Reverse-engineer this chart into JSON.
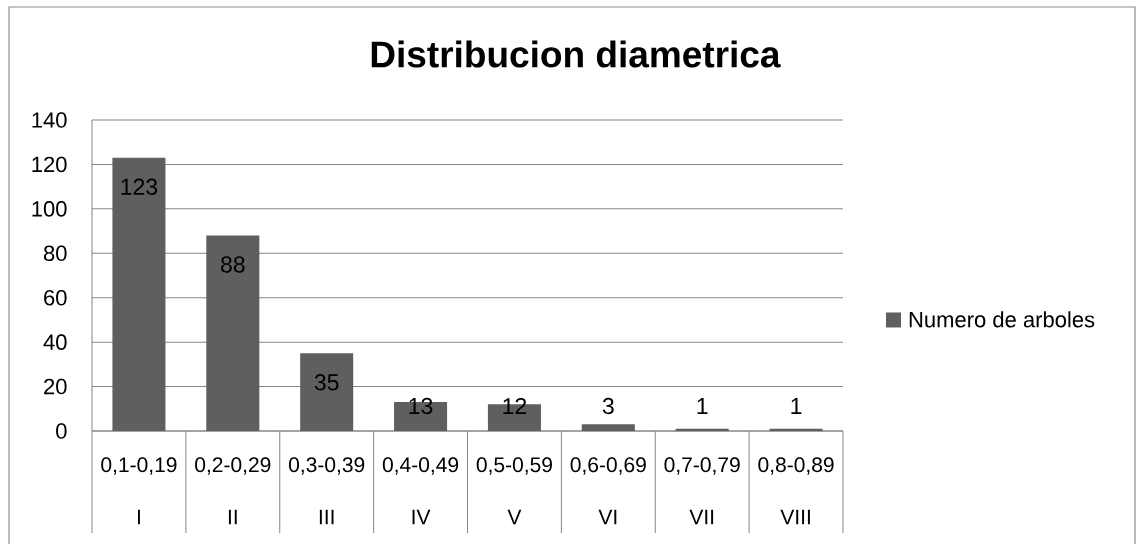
{
  "chart_data": {
    "type": "bar",
    "title": "Distribucion diametrica",
    "categories": [
      "0,1-0,19",
      "0,2-0,29",
      "0,3-0,39",
      "0,4-0,49",
      "0,5-0,59",
      "0,6-0,69",
      "0,7-0,79",
      "0,8-0,89"
    ],
    "series": [
      {
        "name": "Numero de arboles",
        "color": "#5f5f5f",
        "values": [
          123,
          88,
          35,
          13,
          12,
          3,
          1,
          1
        ]
      }
    ],
    "ylim": [
      0,
      140
    ],
    "yticks": [
      0,
      20,
      40,
      60,
      80,
      100,
      120,
      140
    ],
    "grid": "y",
    "legend": "right",
    "data_labels": true,
    "annotations": [
      "I",
      "II",
      "III",
      "IV",
      "V",
      "VI",
      "VII",
      "VIII"
    ]
  }
}
